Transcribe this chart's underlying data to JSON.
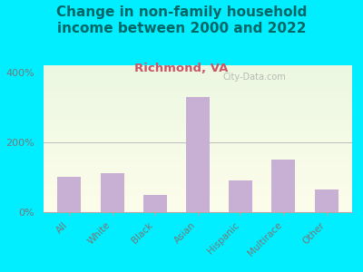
{
  "title": "Change in non-family household\nincome between 2000 and 2022",
  "subtitle": "Richmond, VA",
  "categories": [
    "All",
    "White",
    "Black",
    "Asian",
    "Hispanic",
    "Multirace",
    "Other"
  ],
  "values": [
    100,
    112,
    50,
    330,
    90,
    150,
    65
  ],
  "bar_color": "#c8afd4",
  "background_outer": "#00eeff",
  "title_color": "#006666",
  "subtitle_color": "#cc5566",
  "tick_label_color": "#777777",
  "ylim": [
    0,
    420
  ],
  "yticks": [
    0,
    200,
    400
  ],
  "ytick_labels": [
    "0%",
    "200%",
    "400%"
  ],
  "watermark": "City-Data.com",
  "title_fontsize": 11,
  "subtitle_fontsize": 9.5
}
